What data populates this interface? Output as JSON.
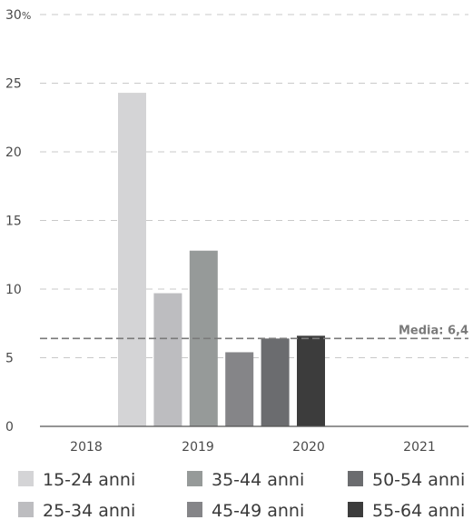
{
  "chart_data": {
    "type": "bar",
    "title": "",
    "xlabel": "",
    "ylabel": "",
    "y_unit": "%",
    "ylim": [
      0,
      30
    ],
    "yticks": [
      0,
      5,
      10,
      15,
      20,
      25,
      30
    ],
    "ytick_labels": [
      "0",
      "5",
      "10",
      "15",
      "20",
      "25",
      "30"
    ],
    "x_tick_labels": [
      "2018",
      "2019",
      "2020",
      "2021"
    ],
    "grid": true,
    "legend_position": "bottom",
    "series": [
      {
        "name": "15-24 anni",
        "value": 24.3,
        "color": "#d4d4d6"
      },
      {
        "name": "25-34 anni",
        "value": 9.7,
        "color": "#bdbdc0"
      },
      {
        "name": "35-44 anni",
        "value": 12.8,
        "color": "#969a99"
      },
      {
        "name": "45-49 anni",
        "value": 5.4,
        "color": "#858588"
      },
      {
        "name": "50-54 anni",
        "value": 6.4,
        "color": "#6b6c6f"
      },
      {
        "name": "55-64 anni",
        "value": 6.6,
        "color": "#3c3c3c"
      }
    ],
    "reference_line": {
      "label": "Media: 6,4",
      "value": 6.4,
      "color": "#7a7a7a"
    }
  }
}
